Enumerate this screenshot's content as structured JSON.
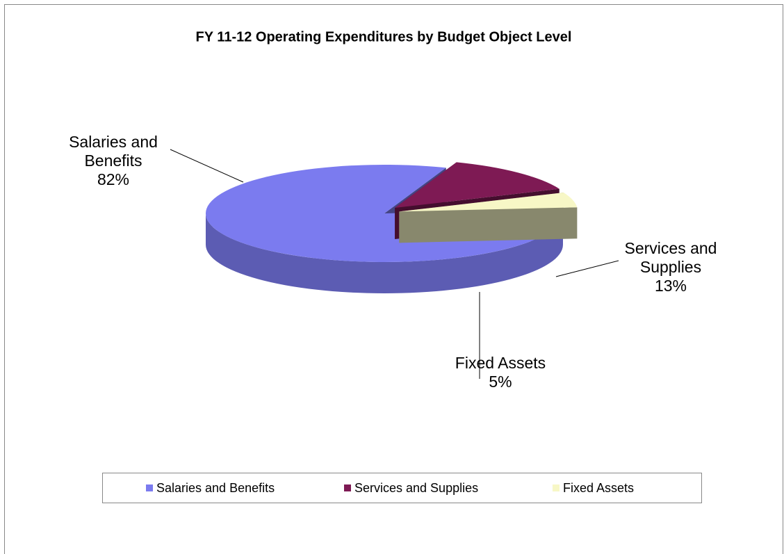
{
  "chart_data": {
    "type": "pie",
    "title": "FY 11-12 Operating Expenditures by Budget Object Level",
    "categories": [
      "Salaries and Benefits",
      "Services and Supplies",
      "Fixed Assets"
    ],
    "values": [
      82,
      13,
      5
    ],
    "value_labels": [
      "82%",
      "13%",
      "5%"
    ],
    "colors": [
      "#7b7bef",
      "#7e1a54",
      "#f7f7c6"
    ],
    "legend": "bottom"
  }
}
